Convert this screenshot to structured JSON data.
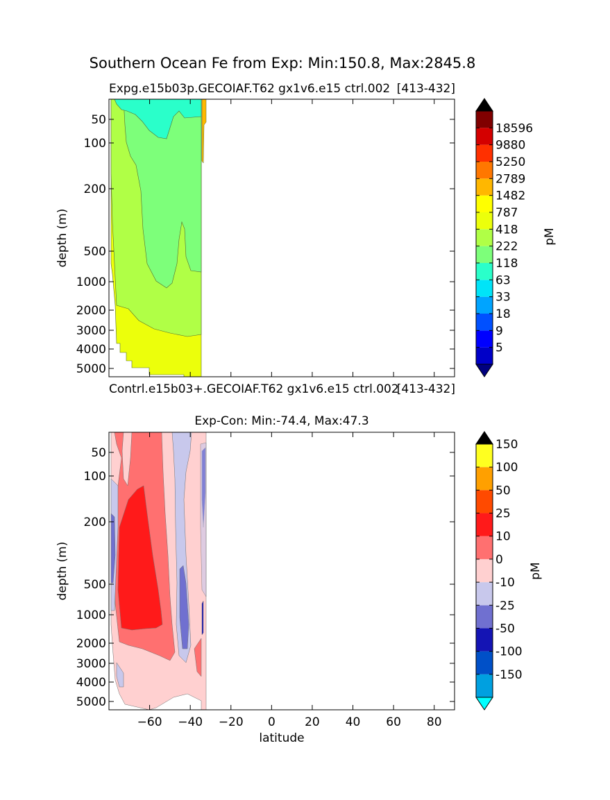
{
  "figure": {
    "suptitle": "Southern Ocean Fe from Exp: Min:150.8, Max:2845.8"
  },
  "chart_data": [
    {
      "type": "heatmap",
      "panel": "top",
      "title": "Expg.e15b03p.GECOIAF.T62 gx1v6.e15 ctrl.002",
      "subtitle_right": "[413-432]",
      "bottom_left_label": "Contrl.e15b03+.GECOIAF.T62 gx1v6.e15 ctrl.002",
      "bottom_right_label": "[413-432]",
      "ylabel": "depth (m)",
      "yticks": [
        "50",
        "100",
        "200",
        "500",
        "1000",
        "2000",
        "3000",
        "4000",
        "5000"
      ],
      "colorbar": {
        "label": "pM",
        "levels": [
          "5",
          "9",
          "18",
          "33",
          "63",
          "118",
          "222",
          "418",
          "787",
          "1482",
          "2789",
          "5250",
          "9880",
          "18596"
        ],
        "colors": [
          "#00007f",
          "#0000c8",
          "#0000ff",
          "#0050ff",
          "#00a4ff",
          "#00e4f8",
          "#2affca",
          "#7dff7a",
          "#b0ff46",
          "#ecff0b",
          "#ffff00",
          "#ffb700",
          "#ff7700",
          "#ff3000",
          "#d40000",
          "#800000",
          "#000000"
        ]
      }
    },
    {
      "type": "heatmap",
      "panel": "bottom",
      "title": "Exp-Con: Min:-74.4, Max:47.3",
      "xlabel": "latitude",
      "ylabel": "depth (m)",
      "xlim": [
        -80,
        90
      ],
      "xticks": [
        "−60",
        "−40",
        "−20",
        "0",
        "20",
        "40",
        "60",
        "80"
      ],
      "yticks": [
        "50",
        "100",
        "200",
        "500",
        "1000",
        "2000",
        "3000",
        "4000",
        "5000"
      ],
      "colorbar": {
        "label": "pM",
        "levels": [
          "-150",
          "-100",
          "-50",
          "-25",
          "-10",
          "0",
          "10",
          "25",
          "50",
          "100",
          "150"
        ],
        "colors": [
          "#00ffff",
          "#00a0e0",
          "#0050c8",
          "#1414b4",
          "#7070d0",
          "#c8c8ec",
          "#ffd0d0",
          "#ff7070",
          "#ff1a1a",
          "#ff4a00",
          "#ffa000",
          "#ffff20",
          "#000000"
        ]
      }
    }
  ]
}
